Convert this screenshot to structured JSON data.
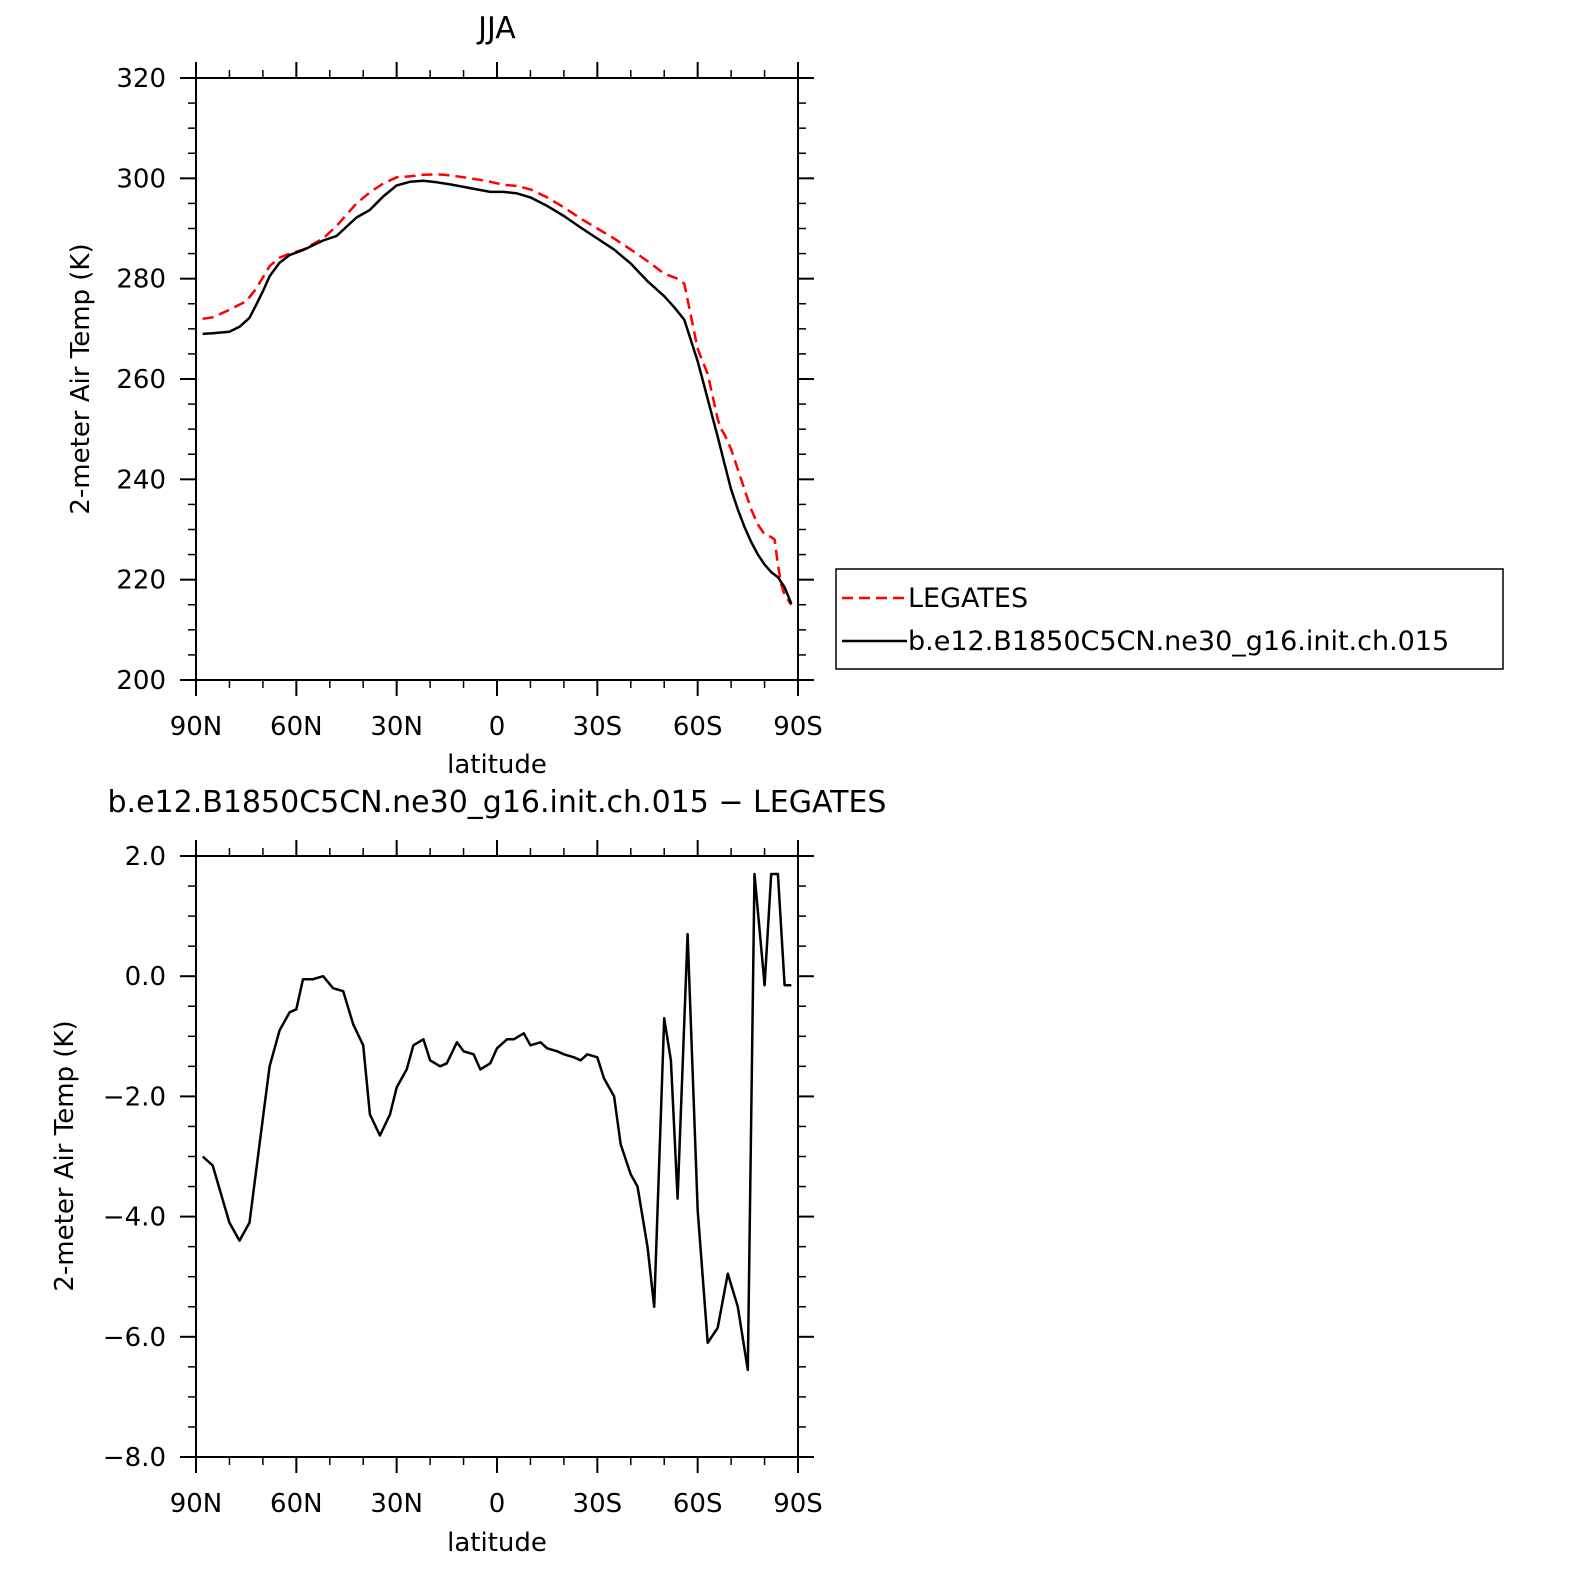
{
  "chart_data": [
    {
      "type": "line",
      "title": "JJA",
      "xlabel": "latitude",
      "ylabel": "2-meter Air Temp (K)",
      "xlim": [
        90,
        -90
      ],
      "ylim": [
        200,
        320
      ],
      "x_ticks": [
        90,
        60,
        30,
        0,
        -30,
        -60,
        -90
      ],
      "x_tick_labels": [
        "90N",
        "60N",
        "30N",
        "0",
        "30S",
        "60S",
        "90S"
      ],
      "y_ticks": [
        200,
        220,
        240,
        260,
        280,
        300,
        320
      ],
      "y_tick_labels": [
        "200",
        "220",
        "240",
        "260",
        "280",
        "300",
        "320"
      ],
      "grid": false,
      "legend": {
        "placement": "right",
        "entries": [
          {
            "name": "LEGATES",
            "color": "#ff0000",
            "dash": "dashed"
          },
          {
            "name": "b.e12.B1850C5CN.ne30_g16.init.ch.015",
            "color": "#000000",
            "dash": "solid"
          }
        ]
      },
      "series": [
        {
          "name": "LEGATES",
          "color": "#ff0000",
          "dash": "dashed",
          "x": [
            88,
            85,
            80,
            75,
            72,
            68,
            65,
            62,
            58,
            52,
            48,
            42,
            38,
            34,
            30,
            26,
            22,
            18,
            14,
            10,
            6,
            2,
            -2,
            -6,
            -10,
            -15,
            -20,
            -25,
            -30,
            -35,
            -40,
            -45,
            -50,
            -54,
            -56,
            -60,
            -63,
            -65,
            -66,
            -67,
            -68,
            -70,
            -72,
            -74,
            -76,
            -78,
            -80,
            -82,
            -83,
            -84,
            -85,
            -86,
            -88
          ],
          "values": [
            272,
            272.3,
            273.8,
            275.5,
            278,
            282.5,
            284.2,
            285,
            285.8,
            288,
            290.5,
            295,
            297.2,
            299,
            300.2,
            300.4,
            300.7,
            300.8,
            300.6,
            300.2,
            299.8,
            299.3,
            298.7,
            298.5,
            297.8,
            296.2,
            294.2,
            292,
            290,
            288,
            285.8,
            283.5,
            281,
            280,
            279,
            266,
            261,
            255,
            252,
            250,
            249,
            246,
            242,
            238,
            234,
            231,
            229,
            228.5,
            228,
            223,
            219,
            217,
            215
          ]
        },
        {
          "name": "b.e12.B1850C5CN.ne30_g16.init.ch.015",
          "color": "#000000",
          "dash": "solid",
          "x": [
            88,
            85,
            80,
            77,
            74,
            72,
            70,
            68,
            65,
            62,
            58,
            52,
            48,
            42,
            38,
            34,
            30,
            26,
            22,
            18,
            14,
            10,
            6,
            2,
            -2,
            -6,
            -10,
            -15,
            -20,
            -25,
            -30,
            -35,
            -40,
            -45,
            -50,
            -53,
            -56,
            -60,
            -62,
            -64,
            -66,
            -68,
            -70,
            -72,
            -74,
            -76,
            -78,
            -80,
            -82,
            -84,
            -86,
            -88
          ],
          "values": [
            269,
            269.1,
            269.4,
            270.4,
            272.2,
            274.8,
            277.5,
            280.5,
            283.2,
            284.7,
            285.7,
            287.6,
            288.5,
            292.2,
            293.7,
            296.4,
            298.6,
            299.3,
            299.5,
            299.2,
            298.8,
            298.3,
            297.8,
            297.3,
            297.3,
            297,
            296.2,
            294.5,
            292.5,
            290.2,
            288,
            285.8,
            283,
            279.5,
            276.5,
            274.3,
            271.8,
            263.5,
            258.5,
            253.5,
            248.5,
            243.2,
            238,
            234,
            230.5,
            227.5,
            225,
            223,
            221.5,
            220.5,
            218.5,
            215.2
          ]
        }
      ]
    },
    {
      "type": "line",
      "title": "b.e12.B1850C5CN.ne30_g16.init.ch.015 - LEGATES",
      "xlabel": "latitude",
      "ylabel": "2-meter Air Temp (K)",
      "xlim": [
        90,
        -90
      ],
      "ylim": [
        -8,
        2
      ],
      "x_ticks": [
        90,
        60,
        30,
        0,
        -30,
        -60,
        -90
      ],
      "x_tick_labels": [
        "90N",
        "60N",
        "30N",
        "0",
        "30S",
        "60S",
        "90S"
      ],
      "y_ticks": [
        -8,
        -6,
        -4,
        -2,
        0,
        2
      ],
      "y_tick_labels": [
        "-8.0",
        "-6.0",
        "-4.0",
        "-2.0",
        "0.0",
        "2.0"
      ],
      "grid": false,
      "series": [
        {
          "name": "",
          "color": "#000000",
          "dash": "solid",
          "x": [
            88,
            85,
            80,
            77,
            74,
            71,
            68,
            65,
            62,
            60,
            58,
            55,
            52,
            49,
            46,
            43,
            40,
            38,
            35,
            32,
            30,
            27,
            25,
            22,
            20,
            17,
            15,
            12,
            10,
            7,
            5,
            2,
            0,
            -3,
            -5,
            -8,
            -10,
            -13,
            -15,
            -18,
            -20,
            -23,
            -25,
            -27,
            -30,
            -32,
            -35,
            -37,
            -40,
            -42,
            -45,
            -47,
            -50,
            -52,
            -54,
            -57,
            -60,
            -63,
            -66,
            -69,
            -72,
            -75,
            -77,
            -80,
            -82,
            -84,
            -86,
            -88
          ],
          "values": [
            -3,
            -3.15,
            -4.1,
            -4.4,
            -4.1,
            -2.8,
            -1.5,
            -0.9,
            -0.6,
            -0.55,
            -0.05,
            -0.05,
            0,
            -0.2,
            -0.25,
            -0.8,
            -1.15,
            -2.3,
            -2.65,
            -2.3,
            -1.85,
            -1.55,
            -1.15,
            -1.05,
            -1.4,
            -1.5,
            -1.45,
            -1.1,
            -1.25,
            -1.3,
            -1.55,
            -1.45,
            -1.2,
            -1.05,
            -1.05,
            -0.95,
            -1.15,
            -1.1,
            -1.2,
            -1.25,
            -1.3,
            -1.35,
            -1.4,
            -1.3,
            -1.35,
            -1.7,
            -2,
            -2.8,
            -3.3,
            -3.5,
            -4.5,
            -5.5,
            -0.7,
            -1.4,
            -3.7,
            0.7,
            -3.9,
            -6.1,
            -5.85,
            -4.95,
            -5.5,
            -6.55,
            1.7,
            -0.15,
            1.7,
            1.7,
            -0.15,
            -0.15
          ]
        }
      ]
    }
  ]
}
